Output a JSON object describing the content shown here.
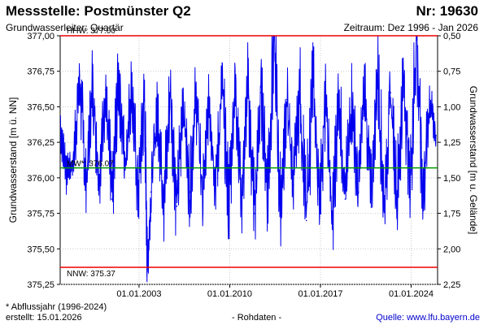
{
  "header": {
    "title": "Messstelle: Postmünster Q2",
    "number": "Nr: 19630",
    "aquifer": "Grundwasserleiter: Quartär",
    "period": "Zeitraum: Dez 1996 - Jan 2026"
  },
  "footer": {
    "note": "* Abflussjahr (1996-2024)",
    "created": "erstellt:  15.01.2026",
    "rawdata": "- Rohdaten -",
    "source": "Quelle: www.lfu.bayern.de"
  },
  "colors": {
    "series": "#0000ee",
    "threshold": "#ee0000",
    "mean": "#009900",
    "axis": "#000000"
  },
  "chart_data": {
    "type": "line",
    "ylabel_left": "Grundwasserstand [m ü. NN]",
    "ylabel_right": "Grundwasserstand [m u. Gelände]",
    "ylim": [
      375.25,
      377.0
    ],
    "y_left_ticks": [
      "375,25",
      "375,50",
      "375,75",
      "376,00",
      "376,25",
      "376,50",
      "376,75",
      "377,00"
    ],
    "y_right_ticks": [
      "0,50",
      "0,75",
      "1,00",
      "1,25",
      "1,50",
      "1,75",
      "2,00",
      "2,25"
    ],
    "x_ticks": [
      "01.01.2003",
      "01.01.2010",
      "01.01.2017",
      "01.01.2024"
    ],
    "x_range": [
      "1996-12-01",
      "2026-01-15"
    ],
    "grid": true,
    "thresholds": [
      {
        "label": "HHW: 377.00",
        "value": 377.0
      },
      {
        "label": "NNW: 375.37",
        "value": 375.37
      }
    ],
    "mean": {
      "label": "MW*: 376.07",
      "value": 376.07
    },
    "series": [
      {
        "x": [
          "1996-12",
          "1997-06",
          "1997-12",
          "1998-06",
          "1998-12",
          "1999-06",
          "1999-12",
          "2000-06",
          "2000-12",
          "2001-06",
          "2001-12",
          "2002-06",
          "2002-12",
          "2003-06",
          "2003-09",
          "2003-12",
          "2004-06",
          "2004-12",
          "2005-06",
          "2005-12",
          "2006-06",
          "2006-12",
          "2007-06",
          "2007-12",
          "2008-06",
          "2008-12",
          "2009-06",
          "2009-12",
          "2010-06",
          "2010-12",
          "2011-06",
          "2011-12",
          "2012-06",
          "2012-12",
          "2013-06",
          "2013-12",
          "2014-06",
          "2014-12",
          "2015-06",
          "2015-12",
          "2016-06",
          "2016-12",
          "2017-06",
          "2017-12",
          "2018-06",
          "2018-12",
          "2019-06",
          "2019-12",
          "2020-06",
          "2020-12",
          "2021-06",
          "2021-12",
          "2022-06",
          "2022-12",
          "2023-06",
          "2023-12",
          "2024-06",
          "2024-12",
          "2025-06",
          "2025-12"
        ],
        "values": [
          376.35,
          376.05,
          376.1,
          376.72,
          375.95,
          376.66,
          376.0,
          376.62,
          375.85,
          376.7,
          376.1,
          376.65,
          375.88,
          376.55,
          375.37,
          375.9,
          376.5,
          375.85,
          376.6,
          375.8,
          376.55,
          375.9,
          376.6,
          375.85,
          376.55,
          375.95,
          376.65,
          375.8,
          376.7,
          375.85,
          376.65,
          375.75,
          376.6,
          375.9,
          376.97,
          375.8,
          376.55,
          375.95,
          376.6,
          375.7,
          376.7,
          375.85,
          376.55,
          375.65,
          376.6,
          375.85,
          376.55,
          375.9,
          376.65,
          375.85,
          376.75,
          375.8,
          376.6,
          375.85,
          376.7,
          375.95,
          376.99,
          375.85,
          376.55,
          376.3
        ]
      }
    ]
  }
}
